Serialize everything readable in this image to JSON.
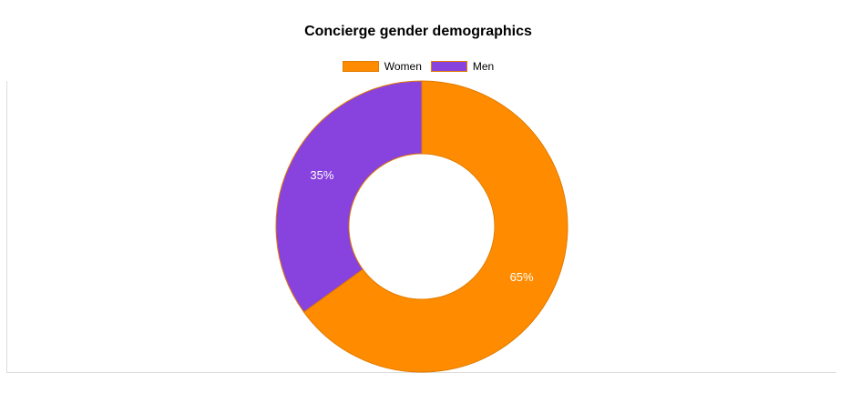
{
  "chart_data": {
    "type": "pie",
    "title": "Concierge gender demographics",
    "categories": [
      "Women",
      "Men"
    ],
    "values": [
      65,
      35
    ],
    "value_labels": [
      "65%",
      "35%"
    ],
    "colors": [
      "#ff8c00",
      "#8842dd"
    ],
    "donut": true,
    "legend_position": "top-center"
  }
}
